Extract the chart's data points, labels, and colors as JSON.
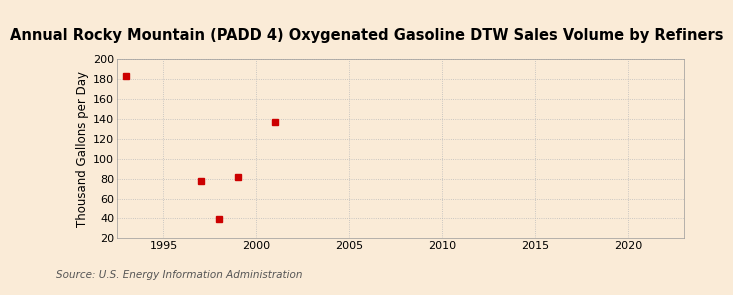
{
  "title": "Annual Rocky Mountain (PADD 4) Oxygenated Gasoline DTW Sales Volume by Refiners",
  "ylabel": "Thousand Gallons per Day",
  "source": "Source: U.S. Energy Information Administration",
  "background_color": "#faebd7",
  "plot_background_color": "#faebd7",
  "data_x": [
    1993,
    1997,
    1998,
    1999,
    2001
  ],
  "data_y": [
    183,
    78,
    39,
    82,
    137
  ],
  "marker_color": "#cc0000",
  "marker_size": 4,
  "xlim": [
    1992.5,
    2023
  ],
  "ylim": [
    20,
    200
  ],
  "xticks": [
    1995,
    2000,
    2005,
    2010,
    2015,
    2020
  ],
  "yticks": [
    20,
    40,
    60,
    80,
    100,
    120,
    140,
    160,
    180,
    200
  ],
  "grid_color": "#bbbbbb",
  "title_fontsize": 10.5,
  "axis_fontsize": 8.5,
  "tick_fontsize": 8,
  "source_fontsize": 7.5
}
